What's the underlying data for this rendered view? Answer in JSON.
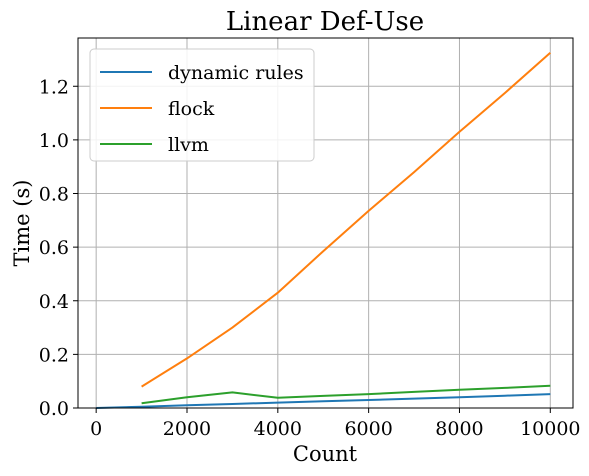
{
  "chart_data": {
    "type": "line",
    "title": "Linear Def-Use",
    "xlabel": "Count",
    "ylabel": "Time (s)",
    "xlim": [
      -400,
      10500
    ],
    "ylim": [
      0,
      1.38
    ],
    "xticks": [
      0,
      2000,
      4000,
      6000,
      8000,
      10000
    ],
    "yticks": [
      0.0,
      0.2,
      0.4,
      0.6,
      0.8,
      1.0,
      1.2
    ],
    "xtick_labels": [
      "0",
      "2000",
      "4000",
      "6000",
      "8000",
      "10000"
    ],
    "ytick_labels": [
      "0.0",
      "0.2",
      "0.4",
      "0.6",
      "0.8",
      "1.0",
      "1.2"
    ],
    "grid": true,
    "legend_position": "top-left",
    "series": [
      {
        "name": "dynamic rules",
        "color": "#1f77b4",
        "x": [
          0,
          1000,
          2000,
          3000,
          4000,
          5000,
          6000,
          7000,
          8000,
          9000,
          10000
        ],
        "y": [
          0.0,
          0.005,
          0.01,
          0.015,
          0.02,
          0.025,
          0.03,
          0.035,
          0.04,
          0.046,
          0.052
        ]
      },
      {
        "name": "flock",
        "color": "#ff7f0e",
        "x": [
          1000,
          2000,
          3000,
          4000,
          5000,
          6000,
          7000,
          8000,
          9000,
          10000
        ],
        "y": [
          0.08,
          0.185,
          0.3,
          0.43,
          0.585,
          0.735,
          0.88,
          1.03,
          1.175,
          1.325
        ]
      },
      {
        "name": "llvm",
        "color": "#2ca02c",
        "x": [
          1000,
          2000,
          3000,
          4000,
          5000,
          6000,
          7000,
          8000,
          9000,
          10000
        ],
        "y": [
          0.018,
          0.04,
          0.058,
          0.038,
          0.045,
          0.052,
          0.06,
          0.068,
          0.075,
          0.083
        ]
      }
    ]
  }
}
